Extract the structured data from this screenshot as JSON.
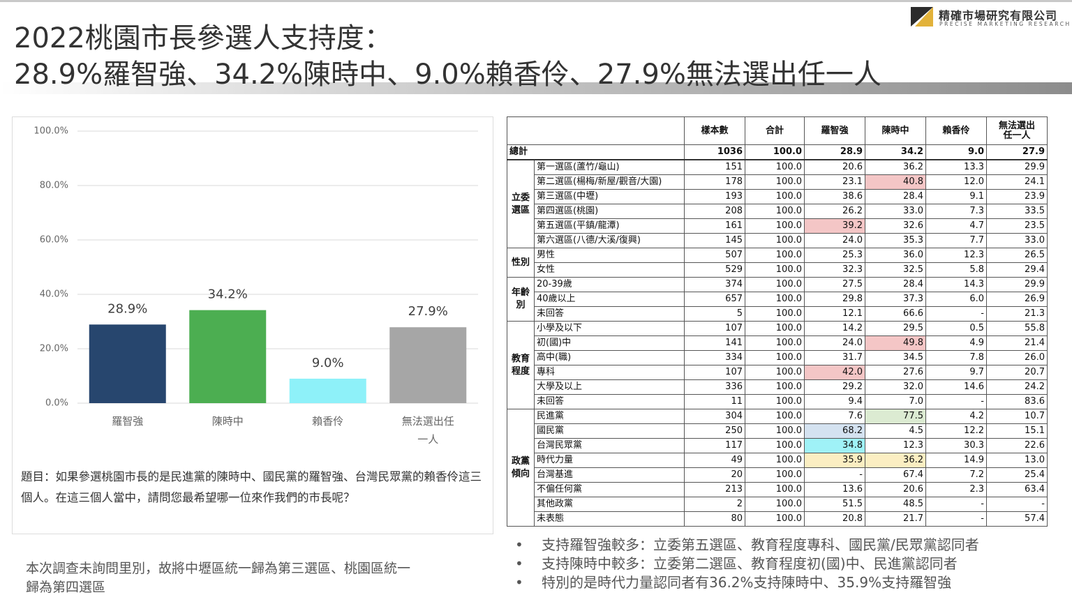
{
  "header": {
    "title_line1": "2022桃園市長參選人支持度：",
    "title_line2": "28.9%羅智強、34.2%陳時中、9.0%賴香伶、27.9%無法選出任一人",
    "logo_name": "精確市場研究有限公司",
    "logo_sub": "PRECISE MARKETING RESEARCH"
  },
  "chart_data": {
    "type": "bar",
    "categories": [
      "羅智強",
      "陳時中",
      "賴香伶",
      "無法選出任一人"
    ],
    "values": [
      28.9,
      34.2,
      9.0,
      27.9
    ],
    "value_labels": [
      "28.9%",
      "34.2%",
      "9.0%",
      "27.9%"
    ],
    "colors": [
      "#27466e",
      "#4cae51",
      "#8ef1f9",
      "#a6a6a6"
    ],
    "ylim": [
      0,
      100
    ],
    "yticks": [
      {
        "value": 0,
        "label": "0.0%"
      },
      {
        "value": 20,
        "label": "20.0%"
      },
      {
        "value": 40,
        "label": "40.0%"
      },
      {
        "value": 60,
        "label": "60.0%"
      },
      {
        "value": 80,
        "label": "80.0%"
      },
      {
        "value": 100,
        "label": "100.0%"
      }
    ],
    "grid": true,
    "question": "題目：如果參選桃園市長的是民進黨的陳時中、國民黨的羅智強、台灣民眾黨的賴香伶這三個人。在這三個人當中，請問您最希望哪一位來作我們的市長呢？"
  },
  "table": {
    "columns": [
      "樣本數",
      "合計",
      "羅智強",
      "陳時中",
      "賴香伶",
      "無法選出任一人"
    ],
    "total": {
      "label": "總計",
      "cells": [
        "1036",
        "100.0",
        "28.9",
        "34.2",
        "9.0",
        "27.9"
      ]
    },
    "groups": [
      {
        "label": "立委選區",
        "rows": [
          {
            "label": "第一選區(蘆竹/龜山)",
            "cells": [
              "151",
              "100.0",
              "20.6",
              "36.2",
              "13.3",
              "29.9"
            ]
          },
          {
            "label": "第二選區(楊梅/新屋/觀音/大園)",
            "cells": [
              "178",
              "100.0",
              "23.1",
              "40.8",
              "12.0",
              "24.1"
            ]
          },
          {
            "label": "第三選區(中壢)",
            "cells": [
              "193",
              "100.0",
              "38.6",
              "28.4",
              "9.1",
              "23.9"
            ]
          },
          {
            "label": "第四選區(桃園)",
            "cells": [
              "208",
              "100.0",
              "26.2",
              "33.0",
              "7.3",
              "33.5"
            ]
          },
          {
            "label": "第五選區(平鎮/龍潭)",
            "cells": [
              "161",
              "100.0",
              "39.2",
              "32.6",
              "4.7",
              "23.5"
            ]
          },
          {
            "label": "第六選區(八德/大溪/復興)",
            "cells": [
              "145",
              "100.0",
              "24.0",
              "35.3",
              "7.7",
              "33.0"
            ]
          }
        ]
      },
      {
        "label": "性別",
        "rows": [
          {
            "label": "男性",
            "cells": [
              "507",
              "100.0",
              "25.3",
              "36.0",
              "12.3",
              "26.5"
            ]
          },
          {
            "label": "女性",
            "cells": [
              "529",
              "100.0",
              "32.3",
              "32.5",
              "5.8",
              "29.4"
            ]
          }
        ]
      },
      {
        "label": "年齡別",
        "rows": [
          {
            "label": "20-39歲",
            "cells": [
              "374",
              "100.0",
              "27.5",
              "28.4",
              "14.3",
              "29.9"
            ]
          },
          {
            "label": "40歲以上",
            "cells": [
              "657",
              "100.0",
              "29.8",
              "37.3",
              "6.0",
              "26.9"
            ]
          },
          {
            "label": "未回答",
            "cells": [
              "5",
              "100.0",
              "12.1",
              "66.6",
              "-",
              "21.3"
            ]
          }
        ]
      },
      {
        "label": "教育程度",
        "rows": [
          {
            "label": "小學及以下",
            "cells": [
              "107",
              "100.0",
              "14.2",
              "29.5",
              "0.5",
              "55.8"
            ]
          },
          {
            "label": "初(國)中",
            "cells": [
              "141",
              "100.0",
              "24.0",
              "49.8",
              "4.9",
              "21.4"
            ]
          },
          {
            "label": "高中(職)",
            "cells": [
              "334",
              "100.0",
              "31.7",
              "34.5",
              "7.8",
              "26.0"
            ]
          },
          {
            "label": "專科",
            "cells": [
              "107",
              "100.0",
              "42.0",
              "27.6",
              "9.7",
              "20.7"
            ]
          },
          {
            "label": "大學及以上",
            "cells": [
              "336",
              "100.0",
              "29.2",
              "32.0",
              "14.6",
              "24.2"
            ]
          },
          {
            "label": "未回答",
            "cells": [
              "11",
              "100.0",
              "9.4",
              "7.0",
              "-",
              "83.6"
            ]
          }
        ]
      },
      {
        "label": "政黨傾向",
        "rows": [
          {
            "label": "民進黨",
            "cells": [
              "304",
              "100.0",
              "7.6",
              "77.5",
              "4.2",
              "10.7"
            ]
          },
          {
            "label": "國民黨",
            "cells": [
              "250",
              "100.0",
              "68.2",
              "4.5",
              "12.2",
              "15.1"
            ]
          },
          {
            "label": "台灣民眾黨",
            "cells": [
              "117",
              "100.0",
              "34.8",
              "12.3",
              "30.3",
              "22.6"
            ]
          },
          {
            "label": "時代力量",
            "cells": [
              "49",
              "100.0",
              "35.9",
              "36.2",
              "14.9",
              "13.0"
            ]
          },
          {
            "label": "台灣基進",
            "cells": [
              "20",
              "100.0",
              "-",
              "67.4",
              "7.2",
              "25.4"
            ]
          },
          {
            "label": "不偏任何黨",
            "cells": [
              "213",
              "100.0",
              "13.6",
              "20.6",
              "2.3",
              "63.4"
            ]
          },
          {
            "label": "其他政黨",
            "cells": [
              "2",
              "100.0",
              "51.5",
              "48.5",
              "-",
              "-"
            ]
          },
          {
            "label": "未表態",
            "cells": [
              "80",
              "100.0",
              "20.8",
              "21.7",
              "-",
              "57.4"
            ]
          }
        ]
      }
    ]
  },
  "notes": {
    "bullets": [
      "支持羅智強較多：立委第五選區、教育程度專科、國民黨/民眾黨認同者",
      "支持陳時中較多：立委第二選區、教育程度初(國)中、民進黨認同者",
      "特別的是時代力量認同者有36.2%支持陳時中、35.9%支持羅智強"
    ],
    "footnote": "本次調查未詢問里別，故將中壢區統一歸為第三選區、桃園區統一歸為第四選區"
  }
}
